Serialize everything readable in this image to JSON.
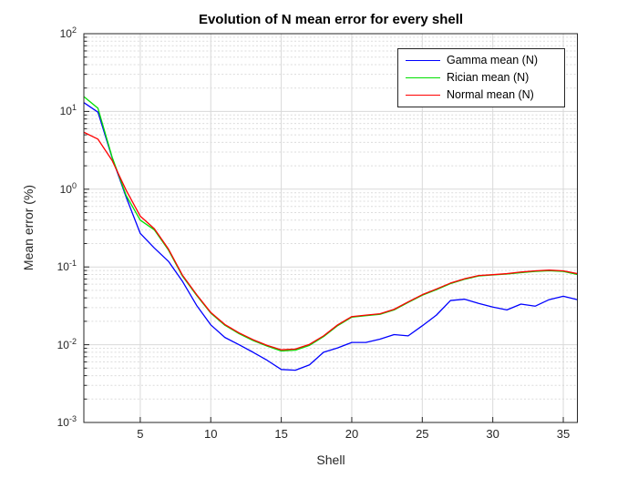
{
  "figure": {
    "title": "Evolution of N mean error for every shell",
    "xlabel": "Shell",
    "ylabel": "Mean error (%)"
  },
  "legend": {
    "position": "top-right",
    "entries": [
      {
        "label": "Gamma mean (N)",
        "color": "#0000ff"
      },
      {
        "label": "Rician mean (N)",
        "color": "#00e000"
      },
      {
        "label": "Normal mean (N)",
        "color": "#ff0000"
      }
    ]
  },
  "colors": {
    "axis": "#262626",
    "grid_major": "#d9d9d9",
    "grid_minor": "#dcdcdc",
    "background": "#ffffff",
    "tick_text": "#262626"
  },
  "chart_data": {
    "type": "line",
    "title": "Evolution of N mean error for every shell",
    "xlabel": "Shell",
    "ylabel": "Mean error (%)",
    "xlim": [
      1,
      36
    ],
    "ylim": [
      0.001,
      100
    ],
    "y_scale": "log",
    "grid": "major solid, log-minor dashed",
    "legend_position": "top-right inside",
    "x_ticks": [
      5,
      10,
      15,
      20,
      25,
      30,
      35
    ],
    "y_tick_base": "10",
    "y_tick_exponents": [
      2,
      1,
      0,
      -1,
      -2,
      -3
    ],
    "x": [
      1,
      2,
      3,
      4,
      5,
      6,
      7,
      8,
      9,
      10,
      11,
      12,
      13,
      14,
      15,
      16,
      17,
      18,
      19,
      20,
      21,
      22,
      23,
      24,
      25,
      26,
      27,
      28,
      29,
      30,
      31,
      32,
      33,
      34,
      35,
      36
    ],
    "series": [
      {
        "name": "Gamma mean (N)",
        "color": "#0000ff",
        "values": [
          13,
          9.8,
          2.55,
          0.79,
          0.27,
          0.175,
          0.118,
          0.065,
          0.032,
          0.018,
          0.0124,
          0.01,
          0.008,
          0.0063,
          0.0048,
          0.0047,
          0.0055,
          0.008,
          0.0091,
          0.0107,
          0.0107,
          0.0118,
          0.0135,
          0.013,
          0.0175,
          0.024,
          0.037,
          0.0385,
          0.034,
          0.0305,
          0.028,
          0.0333,
          0.0313,
          0.038,
          0.042,
          0.038
        ]
      },
      {
        "name": "Rician mean (N)",
        "color": "#00e000",
        "values": [
          15.5,
          11,
          2.6,
          0.83,
          0.4,
          0.3,
          0.165,
          0.076,
          0.043,
          0.0255,
          0.0178,
          0.0139,
          0.0113,
          0.0096,
          0.0083,
          0.0085,
          0.0098,
          0.0127,
          0.0176,
          0.0226,
          0.0236,
          0.0246,
          0.028,
          0.035,
          0.0432,
          0.051,
          0.061,
          0.0695,
          0.0765,
          0.079,
          0.081,
          0.0845,
          0.0875,
          0.0895,
          0.0875,
          0.08
        ]
      },
      {
        "name": "Normal mean (N)",
        "color": "#ff0000",
        "values": [
          5.4,
          4.4,
          2.35,
          0.97,
          0.45,
          0.31,
          0.17,
          0.078,
          0.044,
          0.026,
          0.0182,
          0.0142,
          0.0116,
          0.0098,
          0.0086,
          0.0088,
          0.0101,
          0.013,
          0.018,
          0.023,
          0.024,
          0.025,
          0.0285,
          0.0355,
          0.044,
          0.052,
          0.062,
          0.0705,
          0.0775,
          0.0795,
          0.082,
          0.086,
          0.089,
          0.091,
          0.089,
          0.082
        ]
      }
    ]
  }
}
